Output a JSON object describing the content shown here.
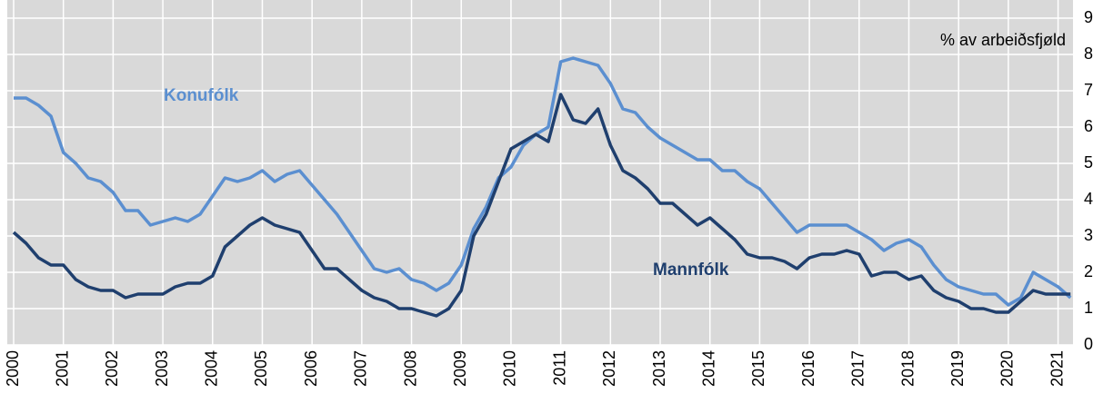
{
  "chart_data": {
    "type": "line",
    "annotations": [
      "Konufólk",
      "Mannfólk",
      "% av arbeiðsfjøld"
    ],
    "x": [
      2000,
      2000.25,
      2000.5,
      2000.75,
      2001,
      2001.25,
      2001.5,
      2001.75,
      2002,
      2002.25,
      2002.5,
      2002.75,
      2003,
      2003.25,
      2003.5,
      2003.75,
      2004,
      2004.25,
      2004.5,
      2004.75,
      2005,
      2005.25,
      2005.5,
      2005.75,
      2006,
      2006.25,
      2006.5,
      2006.75,
      2007,
      2007.25,
      2007.5,
      2007.75,
      2008,
      2008.25,
      2008.5,
      2008.75,
      2009,
      2009.25,
      2009.5,
      2009.75,
      2010,
      2010.25,
      2010.5,
      2010.75,
      2011,
      2011.25,
      2011.5,
      2011.75,
      2012,
      2012.25,
      2012.5,
      2012.75,
      2013,
      2013.25,
      2013.5,
      2013.75,
      2014,
      2014.25,
      2014.5,
      2014.75,
      2015,
      2015.25,
      2015.5,
      2015.75,
      2016,
      2016.25,
      2016.5,
      2016.75,
      2017,
      2017.25,
      2017.5,
      2017.75,
      2018,
      2018.25,
      2018.5,
      2018.75,
      2019,
      2019.25,
      2019.5,
      2019.75,
      2020,
      2020.25,
      2020.5,
      2020.75,
      2021,
      2021.25
    ],
    "series": [
      {
        "name": "Konufólk",
        "color": "#5b8fd0",
        "values": [
          6.8,
          6.8,
          6.6,
          6.3,
          5.3,
          5.0,
          4.6,
          4.5,
          4.2,
          3.7,
          3.7,
          3.3,
          3.4,
          3.5,
          3.4,
          3.6,
          4.1,
          4.6,
          4.5,
          4.6,
          4.8,
          4.5,
          4.7,
          4.8,
          4.4,
          4.0,
          3.6,
          3.1,
          2.6,
          2.1,
          2.0,
          2.1,
          1.8,
          1.7,
          1.5,
          1.7,
          2.2,
          3.2,
          3.8,
          4.6,
          4.9,
          5.5,
          5.8,
          6.0,
          7.8,
          7.9,
          7.8,
          7.7,
          7.2,
          6.5,
          6.4,
          6.0,
          5.7,
          5.5,
          5.3,
          5.1,
          5.1,
          4.8,
          4.8,
          4.5,
          4.3,
          3.9,
          3.5,
          3.1,
          3.3,
          3.3,
          3.3,
          3.3,
          3.1,
          2.9,
          2.6,
          2.8,
          2.9,
          2.7,
          2.2,
          1.8,
          1.6,
          1.5,
          1.4,
          1.4,
          1.1,
          1.3,
          2.0,
          1.8,
          1.6,
          1.3
        ]
      },
      {
        "name": "Mannfólk",
        "color": "#1f3f6e",
        "values": [
          3.1,
          2.8,
          2.4,
          2.2,
          2.2,
          1.8,
          1.6,
          1.5,
          1.5,
          1.3,
          1.4,
          1.4,
          1.4,
          1.6,
          1.7,
          1.7,
          1.9,
          2.7,
          3.0,
          3.3,
          3.5,
          3.3,
          3.2,
          3.1,
          2.6,
          2.1,
          2.1,
          1.8,
          1.5,
          1.3,
          1.2,
          1.0,
          1.0,
          0.9,
          0.8,
          1.0,
          1.5,
          3.0,
          3.6,
          4.5,
          5.4,
          5.6,
          5.8,
          5.6,
          6.9,
          6.2,
          6.1,
          6.5,
          5.5,
          4.8,
          4.6,
          4.3,
          3.9,
          3.9,
          3.6,
          3.3,
          3.5,
          3.2,
          2.9,
          2.5,
          2.4,
          2.4,
          2.3,
          2.1,
          2.4,
          2.5,
          2.5,
          2.6,
          2.5,
          1.9,
          2.0,
          2.0,
          1.8,
          1.9,
          1.5,
          1.3,
          1.2,
          1.0,
          1.0,
          0.9,
          0.9,
          1.2,
          1.5,
          1.4,
          1.4,
          1.4
        ]
      }
    ],
    "xlim": [
      2000,
      2021.3
    ],
    "xticks": [
      2000,
      2001,
      2002,
      2003,
      2004,
      2005,
      2006,
      2007,
      2008,
      2009,
      2010,
      2011,
      2012,
      2013,
      2014,
      2015,
      2016,
      2017,
      2018,
      2019,
      2020,
      2021
    ],
    "ylim": [
      0,
      9
    ],
    "yticks": [
      0,
      1,
      2,
      3,
      4,
      5,
      6,
      7,
      8,
      9
    ],
    "grid": true,
    "background": "#d9d9d9"
  }
}
